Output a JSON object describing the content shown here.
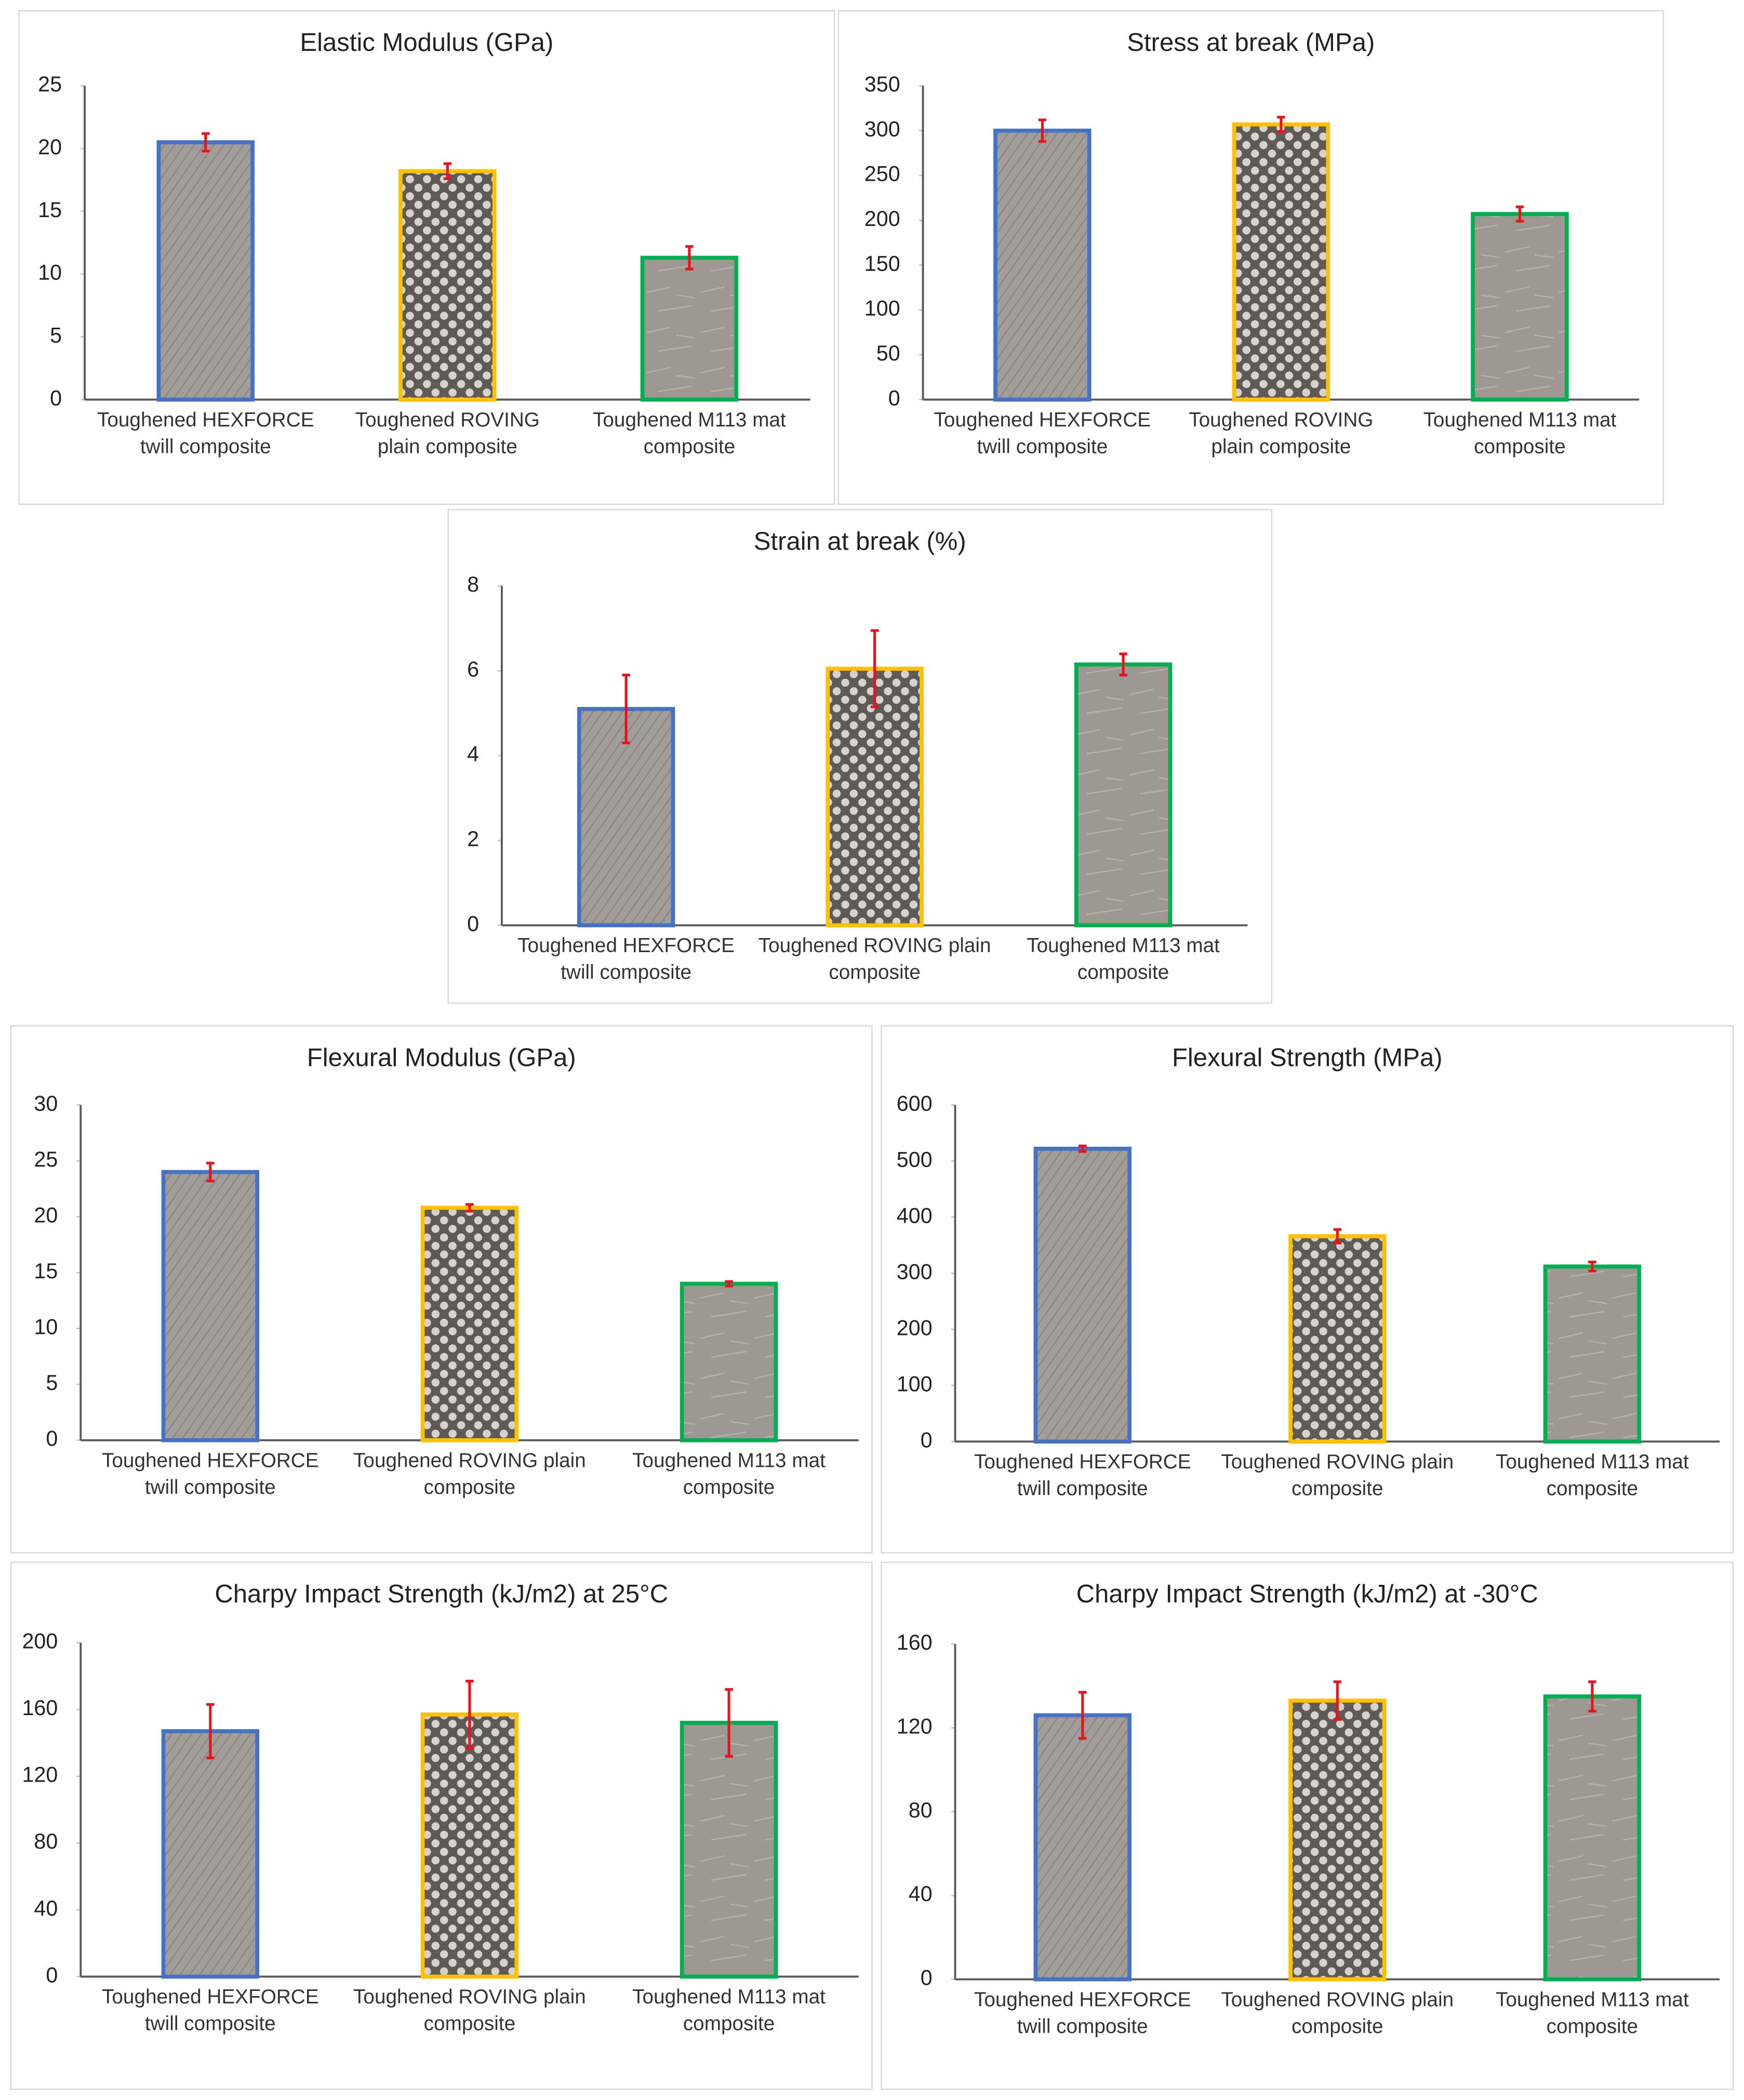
{
  "chart_data": [
    {
      "type": "bar",
      "title": "Elastic Modulus (GPa)",
      "categories": [
        "Toughened HEXFORCE twill composite",
        "Toughened ROVING plain composite",
        "Toughened M113 mat composite"
      ],
      "values": [
        20.5,
        18.2,
        11.3
      ],
      "errors": [
        0.7,
        0.6,
        0.9
      ],
      "colors": [
        "#4472c4",
        "#ffc000",
        "#00b050"
      ],
      "error_color": "#e8141c",
      "ylim": [
        0,
        25
      ],
      "yticks": [
        0,
        5,
        10,
        15,
        20,
        25
      ]
    },
    {
      "type": "bar",
      "title": "Stress at break (MPa)",
      "categories": [
        "Toughened HEXFORCE twill composite",
        "Toughened ROVING plain composite",
        "Toughened M113 mat composite"
      ],
      "values": [
        300,
        307,
        207
      ],
      "errors": [
        12,
        8,
        8
      ],
      "colors": [
        "#4472c4",
        "#ffc000",
        "#00b050"
      ],
      "error_color": "#e8141c",
      "ylim": [
        0,
        350
      ],
      "yticks": [
        0,
        50,
        100,
        150,
        200,
        250,
        300,
        350
      ]
    },
    {
      "type": "bar",
      "title": "Strain at break (%)",
      "categories": [
        "Toughened HEXFORCE twill composite",
        "Toughened ROVING plain composite",
        "Toughened M113 mat composite"
      ],
      "values": [
        5.1,
        6.05,
        6.15
      ],
      "errors": [
        0.8,
        0.9,
        0.25
      ],
      "colors": [
        "#4472c4",
        "#ffc000",
        "#00b050"
      ],
      "error_color": "#e8141c",
      "ylim": [
        0,
        8
      ],
      "yticks": [
        0,
        2,
        4,
        6,
        8
      ]
    },
    {
      "type": "bar",
      "title": "Flexural Modulus (GPa)",
      "categories": [
        "Toughened HEXFORCE twill composite",
        "Toughened ROVING plain composite",
        "Toughened M113 mat composite"
      ],
      "values": [
        24,
        20.8,
        14
      ],
      "errors": [
        0.8,
        0.3,
        0.2
      ],
      "colors": [
        "#4472c4",
        "#ffc000",
        "#00b050"
      ],
      "error_color": "#e8141c",
      "ylim": [
        0,
        30
      ],
      "yticks": [
        0,
        5,
        10,
        15,
        20,
        25,
        30
      ]
    },
    {
      "type": "bar",
      "title": "Flexural Strength (MPa)",
      "categories": [
        "Toughened HEXFORCE twill composite",
        "Toughened ROVING plain composite",
        "Toughened M113 mat composite"
      ],
      "values": [
        522,
        366,
        312
      ],
      "errors": [
        5,
        12,
        8
      ],
      "colors": [
        "#4472c4",
        "#ffc000",
        "#00b050"
      ],
      "error_color": "#e8141c",
      "ylim": [
        0,
        600
      ],
      "yticks": [
        0,
        100,
        200,
        300,
        400,
        500,
        600
      ]
    },
    {
      "type": "bar",
      "title": "Charpy Impact Strength (kJ/m2) at 25°C",
      "categories": [
        "Toughened HEXFORCE twill composite",
        "Toughened ROVING plain composite",
        "Toughened M113 mat composite"
      ],
      "values": [
        147,
        157,
        152
      ],
      "errors": [
        16,
        20,
        20
      ],
      "colors": [
        "#4472c4",
        "#ffc000",
        "#00b050"
      ],
      "error_color": "#e8141c",
      "ylim": [
        0,
        200
      ],
      "yticks": [
        0,
        40,
        80,
        120,
        160,
        200
      ]
    },
    {
      "type": "bar",
      "title": "Charpy Impact Strength (kJ/m2) at -30°C",
      "categories": [
        "Toughened HEXFORCE twill composite",
        "Toughened ROVING plain composite",
        "Toughened M113 mat composite"
      ],
      "values": [
        126,
        133,
        135
      ],
      "errors": [
        11,
        9,
        7
      ],
      "colors": [
        "#4472c4",
        "#ffc000",
        "#00b050"
      ],
      "error_color": "#e8141c",
      "ylim": [
        0,
        160
      ],
      "yticks": [
        0,
        40,
        80,
        120,
        160
      ]
    }
  ]
}
